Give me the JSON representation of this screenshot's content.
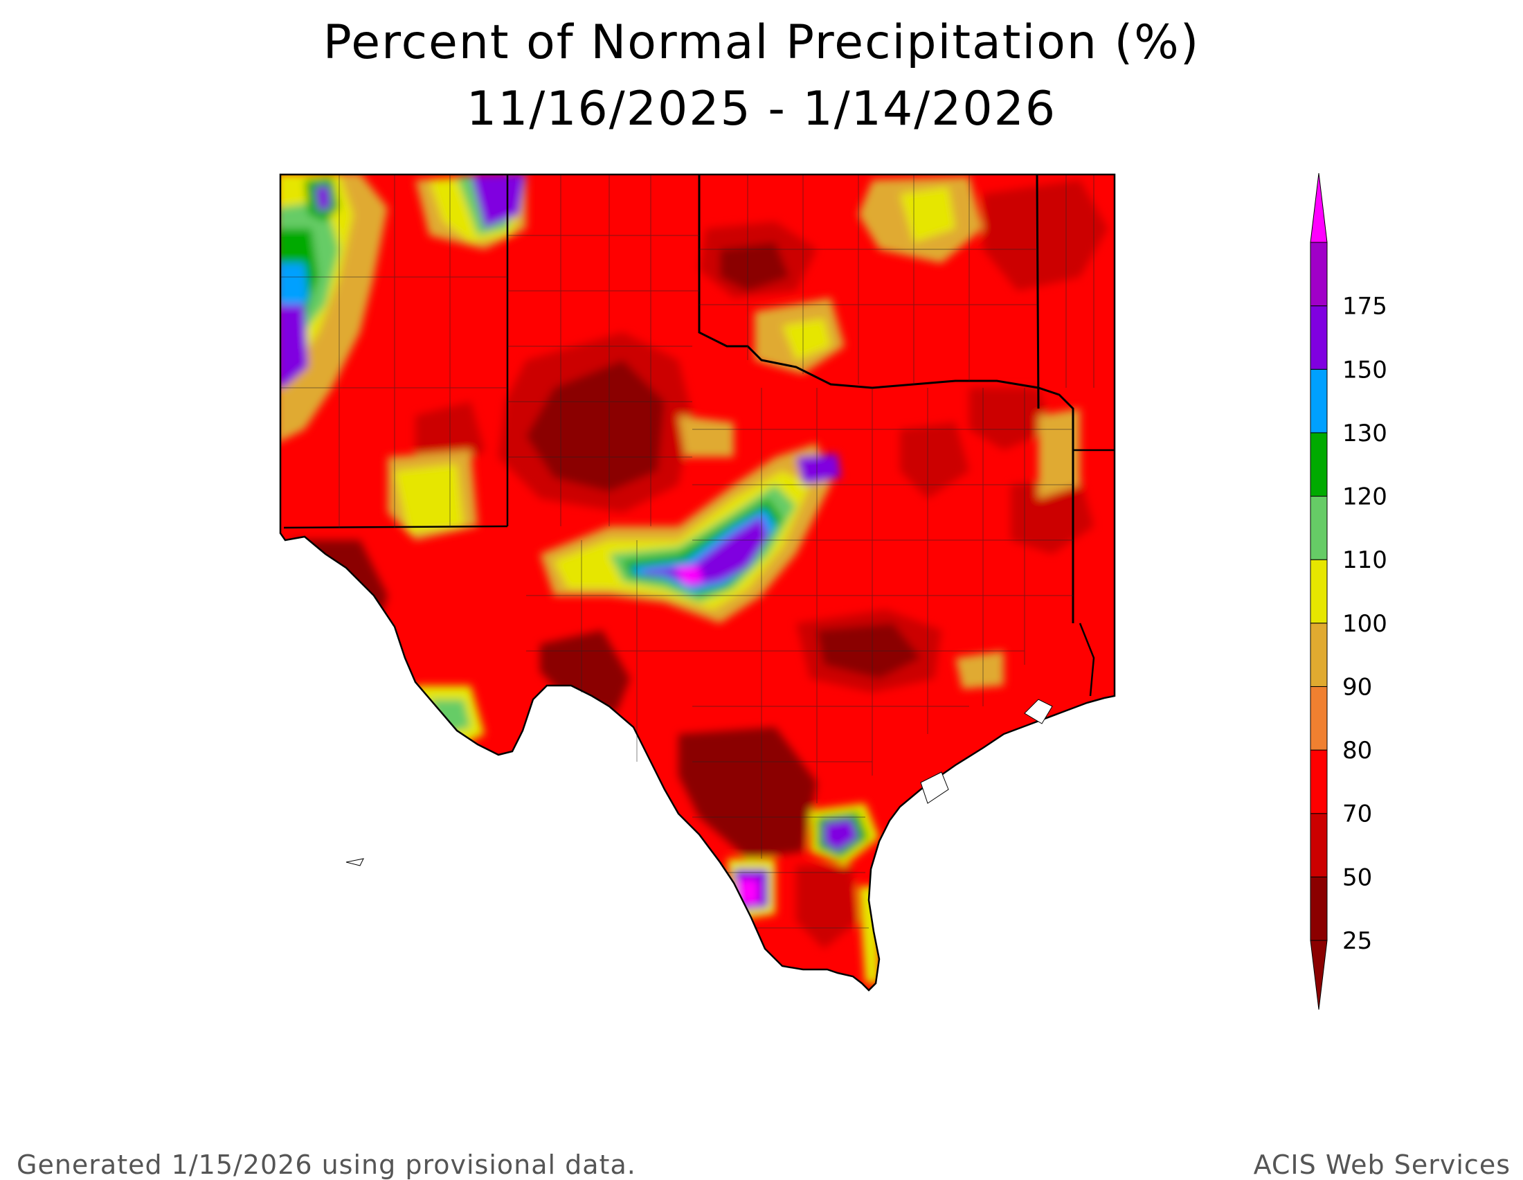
{
  "header": {
    "title": "Percent of Normal Precipitation (%)",
    "date_range": "11/16/2025 - 1/14/2026"
  },
  "legend": {
    "bins": [
      {
        "label": "25",
        "color": "#8b0000"
      },
      {
        "label": "50",
        "color": "#cc0000"
      },
      {
        "label": "70",
        "color": "#ff0000"
      },
      {
        "label": "80",
        "color": "#f08030"
      },
      {
        "label": "90",
        "color": "#e0aa30"
      },
      {
        "label": "100",
        "color": "#e6e600"
      },
      {
        "label": "110",
        "color": "#66cc66"
      },
      {
        "label": "120",
        "color": "#00aa00"
      },
      {
        "label": "130",
        "color": "#00a0ff"
      },
      {
        "label": "150",
        "color": "#8000e0"
      },
      {
        "label": "175",
        "color": "#a000c8"
      }
    ],
    "low_color": "#8b0000",
    "high_color": "#ff00ff"
  },
  "footer": {
    "generated": "Generated 1/15/2026  using provisional data.",
    "source": "ACIS Web Services"
  }
}
